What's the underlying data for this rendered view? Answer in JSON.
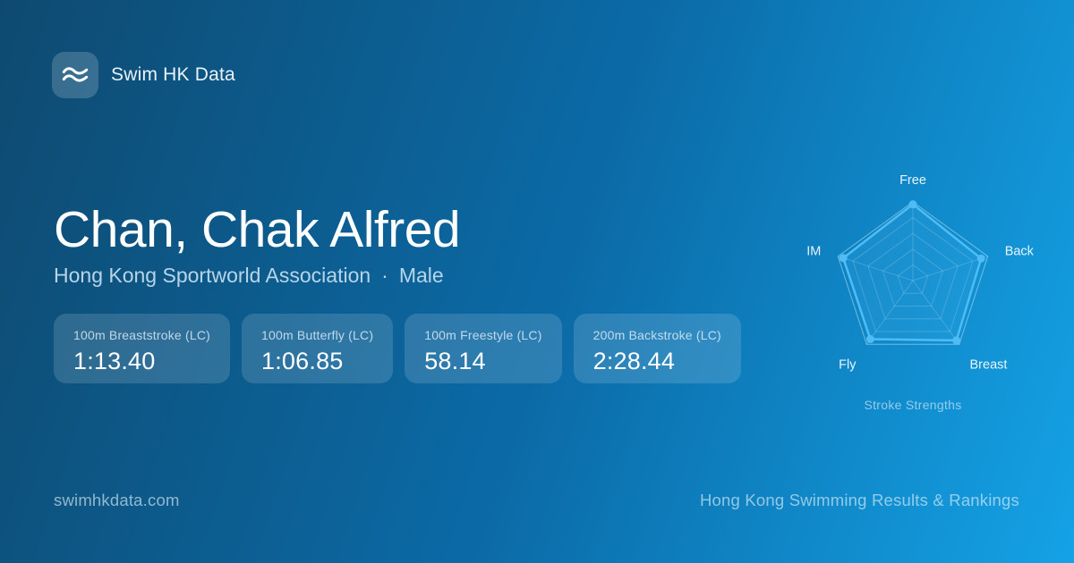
{
  "brand": {
    "name": "Swim HK Data",
    "logo_icon": "waves-icon"
  },
  "athlete": {
    "name": "Chan, Chak Alfred",
    "club": "Hong Kong Sportworld Association",
    "separator": "·",
    "gender": "Male"
  },
  "stats": [
    {
      "label": "100m Breaststroke (LC)",
      "value": "1:13.40"
    },
    {
      "label": "100m Butterfly (LC)",
      "value": "1:06.85"
    },
    {
      "label": "100m Freestyle (LC)",
      "value": "58.14"
    },
    {
      "label": "200m Backstroke (LC)",
      "value": "2:28.44"
    }
  ],
  "chart_data": {
    "type": "radar",
    "title": "Stroke Strengths",
    "categories": [
      "Free",
      "Back",
      "Breast",
      "Fly",
      "IM"
    ],
    "values": [
      97,
      91,
      94,
      92,
      93
    ],
    "rlim": [
      0,
      100
    ],
    "rings": 5,
    "grid": true,
    "legend": false,
    "accent": "#4fbdf5",
    "grid_color": "rgba(255,255,255,0.26)",
    "label_color": "#e8f4fc"
  },
  "footer": {
    "left": "swimhkdata.com",
    "right": "Hong Kong Swimming Results & Rankings"
  },
  "colors": {
    "bg_gradient_start": "#0e4a70",
    "bg_gradient_mid": "#0b6aa6",
    "bg_gradient_end": "#14a2e6",
    "card_bg": "rgba(255,255,255,0.14)",
    "accent": "#4fbdf5"
  }
}
